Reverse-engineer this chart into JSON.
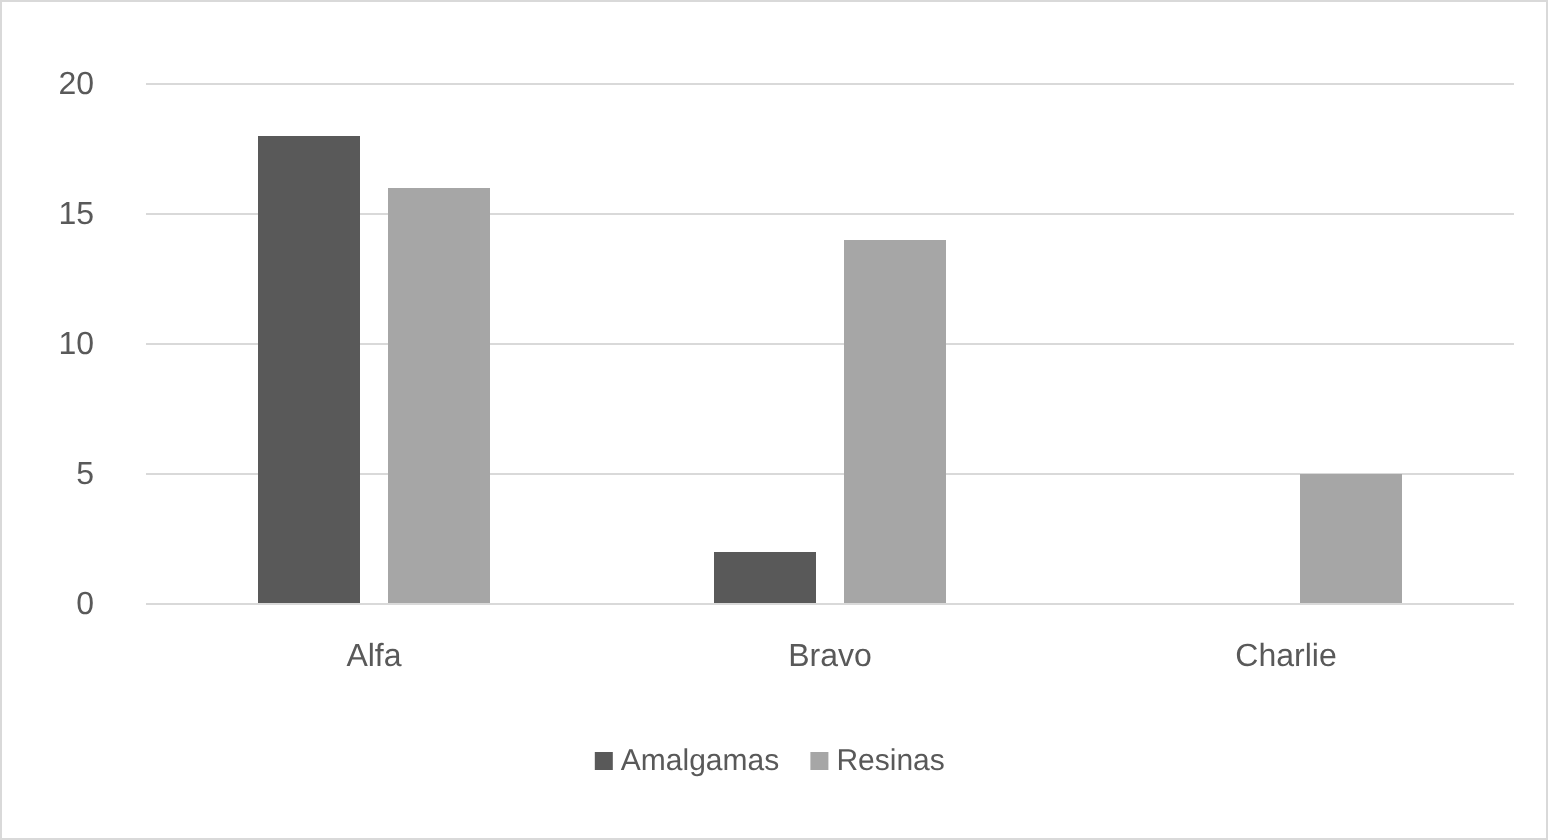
{
  "chart_data": {
    "type": "bar",
    "categories": [
      "Alfa",
      "Bravo",
      "Charlie"
    ],
    "series": [
      {
        "name": "Amalgamas",
        "color": "#595959",
        "values": [
          18,
          2,
          0
        ]
      },
      {
        "name": "Resinas",
        "color": "#a6a6a6",
        "values": [
          16,
          14,
          5
        ]
      }
    ],
    "ylim": [
      0,
      20
    ],
    "yticks": [
      0,
      5,
      10,
      15,
      20
    ],
    "grid": "y",
    "legend": "bottom"
  }
}
